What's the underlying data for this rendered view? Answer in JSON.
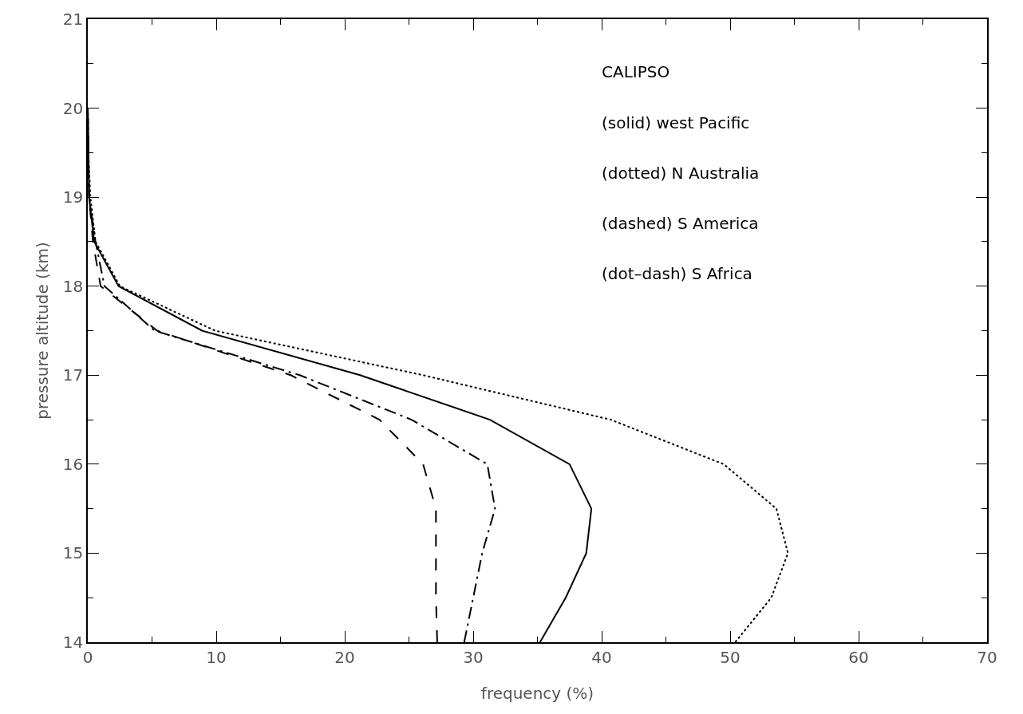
{
  "chart_data": {
    "type": "line",
    "xlabel": "frequency (%)",
    "ylabel": "pressure altitude (km)",
    "series": [
      {
        "color": "#000000",
        "line_style": "solid",
        "x": [
          35.2,
          37.2,
          38.8,
          39.2,
          37.5,
          31.3,
          21.2,
          8.9,
          2.4,
          0.5,
          0.1,
          0.05,
          0
        ],
        "values": [
          14,
          14.5,
          15,
          15.5,
          16,
          16.5,
          17,
          17.5,
          18,
          18.5,
          19,
          19.5,
          20
        ]
      },
      {
        "color": "#000000",
        "line_style": "dotted",
        "x": [
          50.4,
          53.2,
          54.5,
          53.6,
          49.5,
          40.7,
          26.1,
          9.9,
          2.5,
          0.6,
          0.2,
          0.05,
          0
        ],
        "values": [
          14,
          14.5,
          15,
          15.5,
          16,
          16.5,
          17,
          17.5,
          18,
          18.5,
          19,
          19.5,
          20
        ]
      },
      {
        "color": "#000000",
        "line_style": "dashed",
        "x": [
          27.2,
          27.1,
          27.1,
          27.1,
          26.1,
          22.7,
          15.8,
          5.4,
          1.0,
          0.4,
          0.1,
          0.05,
          0
        ],
        "values": [
          14,
          14.5,
          15,
          15.5,
          16,
          16.5,
          17,
          17.5,
          18,
          18.5,
          19,
          19.5,
          20
        ]
      },
      {
        "color": "#000000",
        "line_style": "dashdot",
        "x": [
          29.3,
          30.0,
          30.7,
          31.7,
          31.1,
          25.2,
          16.5,
          5.2,
          1.3,
          0.6,
          0.1,
          0.05,
          0
        ],
        "values": [
          14,
          14.5,
          15,
          15.5,
          16,
          16.5,
          17,
          17.5,
          18,
          18.5,
          19,
          19.5,
          20
        ]
      }
    ],
    "xlim": [
      0,
      70
    ],
    "xticks": [
      0,
      10,
      20,
      30,
      40,
      50,
      60,
      70
    ],
    "ylim": [
      14,
      21
    ],
    "yticks": [
      14,
      15,
      16,
      17,
      18,
      19,
      20,
      21
    ],
    "marker": "none",
    "annotations": [
      "CALIPSO",
      "(solid) west Pacific",
      "(dotted) N Australia",
      "(dashed) S America",
      "(dot–dash) S Africa"
    ]
  }
}
